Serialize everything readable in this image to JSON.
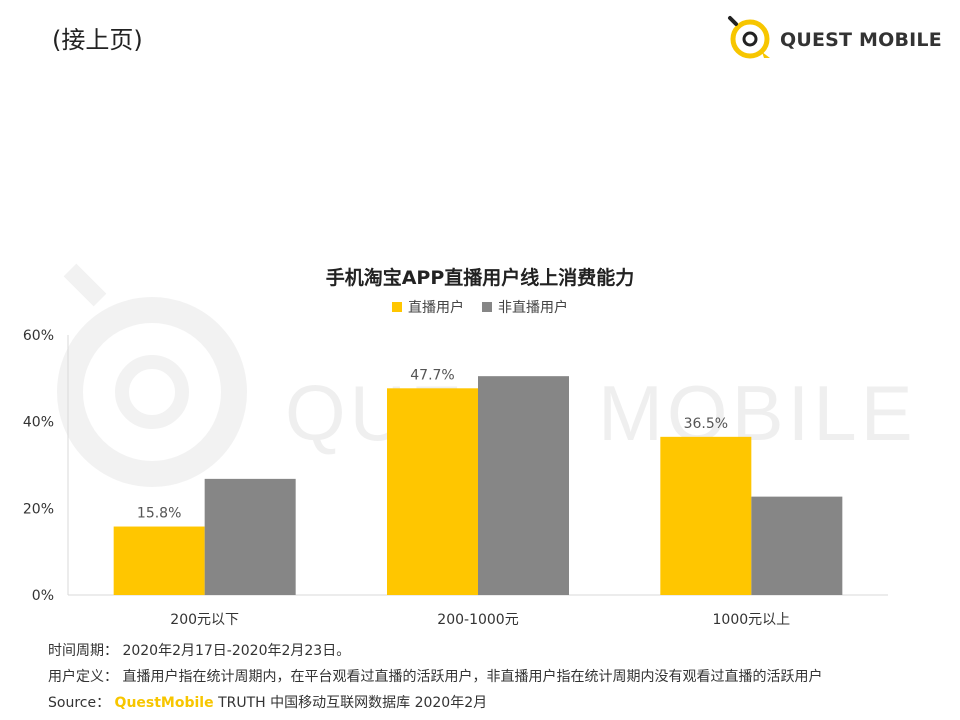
{
  "header": {
    "title": "(接上页)"
  },
  "brand": {
    "name": "QUEST MOBILE",
    "color": "#f7c600"
  },
  "watermark": {
    "text": "QUEST MOBILE"
  },
  "chart_data": {
    "type": "bar",
    "title": "手机淘宝APP直播用户线上消费能力",
    "categories": [
      "200元以下",
      "200-1000元",
      "1000元以上"
    ],
    "series": [
      {
        "name": "直播用户",
        "color": "#ffc600",
        "values": [
          15.8,
          47.7,
          36.5
        ],
        "labels": [
          "15.8%",
          "47.7%",
          "36.5%"
        ]
      },
      {
        "name": "非直播用户",
        "color": "#868686",
        "values": [
          26.8,
          50.5,
          22.7
        ],
        "labels": [
          "",
          "",
          ""
        ]
      }
    ],
    "ylim": [
      0,
      60
    ],
    "yticks": [
      0,
      20,
      40,
      60
    ],
    "ytick_labels": [
      "0%",
      "20%",
      "40%",
      "60%"
    ],
    "legend_position": "top-center",
    "grid": false
  },
  "notes": {
    "period_label": "时间周期：",
    "period_value": "2020年2月17日-2020年2月23日。",
    "definition_label": "用户定义：",
    "definition_value": "直播用户指在统计周期内，在平台观看过直播的活跃用户，非直播用户指在统计周期内没有观看过直播的活跃用户",
    "source_label": "Source：",
    "source_brand": "QuestMobile",
    "source_value": "TRUTH 中国移动互联网数据库 2020年2月"
  }
}
